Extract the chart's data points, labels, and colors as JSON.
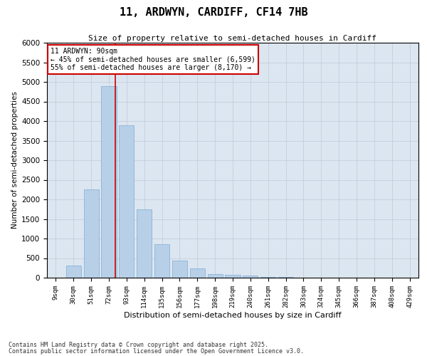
{
  "title": "11, ARDWYN, CARDIFF, CF14 7HB",
  "subtitle": "Size of property relative to semi-detached houses in Cardiff",
  "xlabel": "Distribution of semi-detached houses by size in Cardiff",
  "ylabel": "Number of semi-detached properties",
  "categories": [
    "9sqm",
    "30sqm",
    "51sqm",
    "72sqm",
    "93sqm",
    "114sqm",
    "135sqm",
    "156sqm",
    "177sqm",
    "198sqm",
    "219sqm",
    "240sqm",
    "261sqm",
    "282sqm",
    "303sqm",
    "324sqm",
    "345sqm",
    "366sqm",
    "387sqm",
    "408sqm",
    "429sqm"
  ],
  "values": [
    0,
    310,
    2250,
    4900,
    3900,
    1750,
    850,
    430,
    230,
    100,
    75,
    55,
    25,
    12,
    8,
    4,
    2,
    1,
    1,
    0,
    0
  ],
  "bar_color": "#b8cfe8",
  "bar_edge_color": "#7aadd4",
  "vline_color": "#cc0000",
  "vline_x": 3.35,
  "annotation_title": "11 ARDWYN: 90sqm",
  "annotation_line1": "← 45% of semi-detached houses are smaller (6,599)",
  "annotation_line2": "55% of semi-detached houses are larger (8,170) →",
  "annotation_box_color": "#cc0000",
  "ylim": [
    0,
    6000
  ],
  "yticks": [
    0,
    500,
    1000,
    1500,
    2000,
    2500,
    3000,
    3500,
    4000,
    4500,
    5000,
    5500,
    6000
  ],
  "grid_color": "#c0c8d8",
  "bg_color": "#dce6f0",
  "footer_line1": "Contains HM Land Registry data © Crown copyright and database right 2025.",
  "footer_line2": "Contains public sector information licensed under the Open Government Licence v3.0."
}
